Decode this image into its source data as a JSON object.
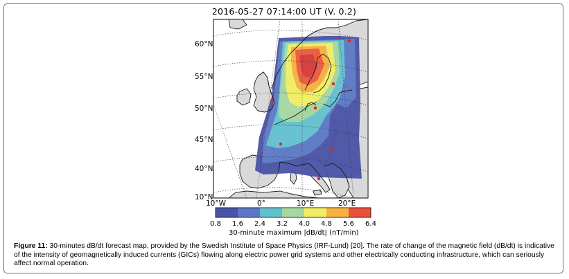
{
  "map": {
    "title": "2016-05-27 07:14:00 UT (V. 0.2)",
    "lat_labels": [
      "60°N",
      "55°N",
      "50°N",
      "45°N",
      "40°N",
      "10°N"
    ],
    "lon_labels": [
      "10°W",
      "0°",
      "10°E",
      "20°E"
    ],
    "colors": {
      "land": "#d9d9d9",
      "sea": "#ffffff",
      "coast": "#1a1a1a",
      "station": "#e8221f",
      "level_1": "#4a54a6",
      "level_2": "#5b79c6",
      "level_3": "#63c1cf",
      "level_4": "#a4d6a0",
      "level_5": "#f1ee63",
      "level_6": "#f8b042",
      "level_7": "#ee5a3b",
      "level_8": "#d43a3a"
    }
  },
  "colorbar": {
    "ticks": [
      "0.8",
      "1.6",
      "2.4",
      "3.2",
      "4.0",
      "4.8",
      "5.6",
      "6.4"
    ],
    "label": "30-minute maximum |dB/dt| (nT/min)",
    "colors": [
      "#4a54a6",
      "#5c77c3",
      "#63c0cf",
      "#a6d8a0",
      "#f1ed63",
      "#f8b142",
      "#e8503a"
    ]
  },
  "caption": {
    "label": "Figure 11:",
    "text": " 30-minutes dB/dt forecast map, provided by the Swedish Institute of Space Physics (IRF-Lund) [20]. The rate of change of the magnetic field (dB/dt) is indicative of the intensity of geomagnetically induced currents (GICs) flowing along electric power grid systems and other electrically conducting infrastructure, which can seriously affect normal operation."
  }
}
